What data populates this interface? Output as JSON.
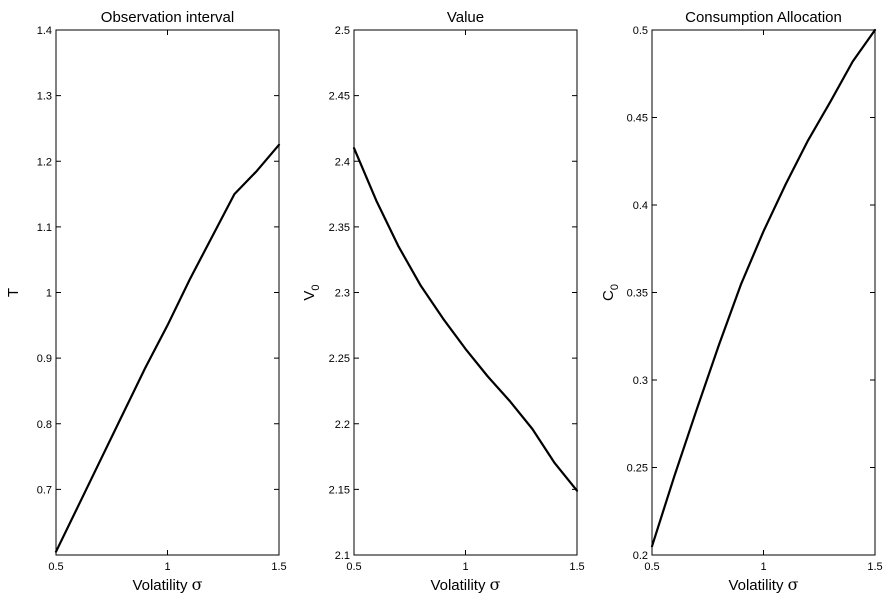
{
  "chart_data": [
    {
      "type": "line",
      "title": "Observation interval",
      "xlabel": "Volatility",
      "xlabel_symbol": "σ",
      "ylabel": "T",
      "ylabel_sub": "",
      "xlim": [
        0.5,
        1.5
      ],
      "ylim": [
        0.6,
        1.4
      ],
      "xticks": [
        0.5,
        1,
        1.5
      ],
      "yticks": [
        0.7,
        0.8,
        0.9,
        1,
        1.1,
        1.2,
        1.3,
        1.4
      ],
      "xtick_labels": [
        "0.5",
        "1",
        "1.5"
      ],
      "ytick_labels": [
        "0.7",
        "0.8",
        "0.9",
        "1",
        "1.1",
        "1.2",
        "1.3",
        "1.4"
      ],
      "grid": false,
      "series": [
        {
          "color": "#000000",
          "x": [
            0.5,
            0.6,
            0.7,
            0.8,
            0.9,
            1.0,
            1.1,
            1.2,
            1.3,
            1.4,
            1.5
          ],
          "y": [
            0.605,
            0.675,
            0.745,
            0.815,
            0.885,
            0.95,
            1.02,
            1.085,
            1.15,
            1.185,
            1.225
          ]
        }
      ]
    },
    {
      "type": "line",
      "title": "Value",
      "xlabel": "Volatility",
      "xlabel_symbol": "σ",
      "ylabel": "V",
      "ylabel_sub": "0",
      "xlim": [
        0.5,
        1.5
      ],
      "ylim": [
        2.1,
        2.5
      ],
      "xticks": [
        0.5,
        1,
        1.5
      ],
      "yticks": [
        2.1,
        2.15,
        2.2,
        2.25,
        2.3,
        2.35,
        2.4,
        2.45,
        2.5
      ],
      "xtick_labels": [
        "0.5",
        "1",
        "1.5"
      ],
      "ytick_labels": [
        "2.1",
        "2.15",
        "2.2",
        "2.25",
        "2.3",
        "2.35",
        "2.4",
        "2.45",
        "2.5"
      ],
      "grid": false,
      "series": [
        {
          "color": "#000000",
          "x": [
            0.5,
            0.6,
            0.7,
            0.8,
            0.9,
            1.0,
            1.1,
            1.2,
            1.3,
            1.4,
            1.5
          ],
          "y": [
            2.41,
            2.37,
            2.335,
            2.305,
            2.28,
            2.257,
            2.236,
            2.217,
            2.196,
            2.17,
            2.149
          ]
        }
      ]
    },
    {
      "type": "line",
      "title": "Consumption Allocation",
      "xlabel": "Volatility",
      "xlabel_symbol": "σ",
      "ylabel": "C",
      "ylabel_sub": "0",
      "xlim": [
        0.5,
        1.5
      ],
      "ylim": [
        0.2,
        0.5
      ],
      "xticks": [
        0.5,
        1,
        1.5
      ],
      "yticks": [
        0.2,
        0.25,
        0.3,
        0.35,
        0.4,
        0.45,
        0.5
      ],
      "xtick_labels": [
        "0.5",
        "1",
        "1.5"
      ],
      "ytick_labels": [
        "0.2",
        "0.25",
        "0.3",
        "0.35",
        "0.4",
        "0.45",
        "0.5"
      ],
      "grid": false,
      "series": [
        {
          "color": "#000000",
          "x": [
            0.5,
            0.6,
            0.7,
            0.8,
            0.9,
            1.0,
            1.1,
            1.2,
            1.3,
            1.4,
            1.5
          ],
          "y": [
            0.205,
            0.245,
            0.283,
            0.32,
            0.355,
            0.385,
            0.412,
            0.437,
            0.459,
            0.482,
            0.5
          ]
        }
      ]
    }
  ]
}
